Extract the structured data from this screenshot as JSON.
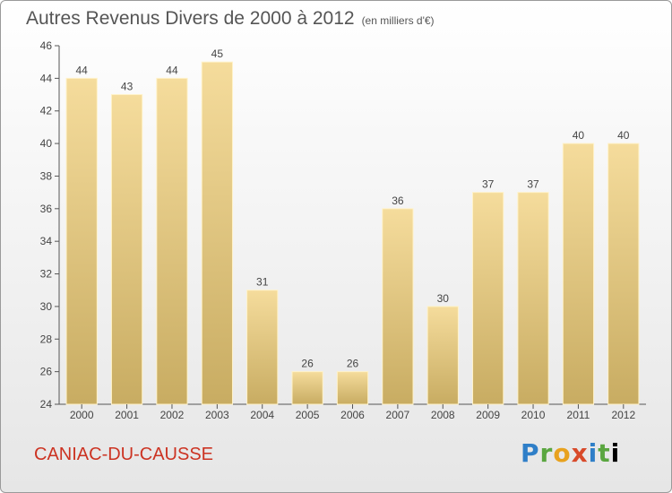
{
  "header": {
    "title": "Autres Revenus Divers de 2000 à 2012",
    "unit": "(en milliers d'€)"
  },
  "footer": {
    "town": "CANIAC-DU-CAUSSE",
    "logo": [
      "P",
      "r",
      "o",
      "x",
      "i",
      "t",
      "i"
    ]
  },
  "colors": {
    "bar_top": "#f5dc9c",
    "bar_bottom": "#c8ac62",
    "bar_edge": "#fff2c8",
    "axis": "#555555"
  },
  "chart_data": {
    "type": "bar",
    "title": "Autres Revenus Divers de 2000 à 2012",
    "xlabel": "",
    "ylabel": "",
    "categories": [
      "2000",
      "2001",
      "2002",
      "2003",
      "2004",
      "2005",
      "2006",
      "2007",
      "2008",
      "2009",
      "2010",
      "2011",
      "2012"
    ],
    "values": [
      44,
      43,
      44,
      45,
      31,
      26,
      26,
      36,
      30,
      37,
      37,
      40,
      40
    ],
    "ylim": [
      24,
      46
    ],
    "yticks": [
      24,
      26,
      28,
      30,
      32,
      34,
      36,
      38,
      40,
      42,
      44,
      46
    ],
    "grid": false,
    "legend": "none"
  }
}
